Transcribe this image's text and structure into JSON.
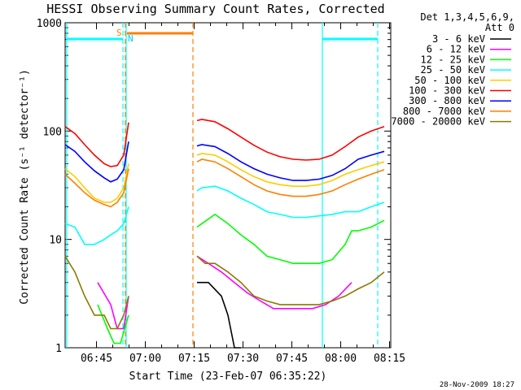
{
  "chart_data": {
    "type": "line",
    "title": "HESSI Observing Summary Count Rates, Corrected",
    "xlabel": "Start Time (23-Feb-07 06:35:22)",
    "ylabel": "Corrected Count Rate (s⁻¹ detector⁻¹)",
    "y_scale": "log",
    "ylim": [
      1,
      1000
    ],
    "xlim_minutes": [
      0,
      100
    ],
    "x_ticks": [
      {
        "t": 9.63,
        "label": "06:45"
      },
      {
        "t": 24.63,
        "label": "07:00"
      },
      {
        "t": 39.63,
        "label": "07:15"
      },
      {
        "t": 54.63,
        "label": "07:30"
      },
      {
        "t": 69.63,
        "label": "07:45"
      },
      {
        "t": 84.63,
        "label": "08:00"
      },
      {
        "t": 99.63,
        "label": "08:15"
      }
    ],
    "y_ticks": [
      {
        "v": 1,
        "label": "1"
      },
      {
        "v": 10,
        "label": "10"
      },
      {
        "v": 100,
        "label": "100"
      },
      {
        "v": 1000,
        "label": "1000"
      }
    ],
    "legend": {
      "placement": "right",
      "header": [
        "Det 1,3,4,5,6,9,",
        "Att 0"
      ]
    },
    "series": [
      {
        "name": "3 - 6 keV",
        "color": "#000000",
        "x": [
          40.5,
          44,
          48,
          50,
          52,
          54
        ],
        "y": [
          4,
          4,
          3,
          2,
          1,
          1
        ]
      },
      {
        "name": "6 - 12 keV",
        "color": "#ff00ff",
        "x": [
          10,
          14,
          16,
          18,
          19.5,
          40.5,
          44,
          48,
          52,
          56,
          60,
          64,
          68,
          72,
          76,
          80,
          84,
          88
        ],
        "y": [
          4,
          2.5,
          1.5,
          1.5,
          3,
          7,
          6,
          5,
          4,
          3.2,
          2.7,
          2.3,
          2.3,
          2.3,
          2.3,
          2.5,
          3,
          4
        ]
      },
      {
        "name": "12 - 25 keV",
        "color": "#00ff00",
        "x": [
          10,
          13,
          15,
          17,
          19.5,
          40.5,
          42,
          46,
          50,
          54,
          58,
          62,
          66,
          70,
          74,
          78,
          82,
          86,
          88,
          90,
          94,
          98
        ],
        "y": [
          2.5,
          1.5,
          1.1,
          1.1,
          2,
          13,
          14,
          17,
          14,
          11,
          9,
          7,
          6.5,
          6,
          6,
          6,
          6.5,
          9,
          12,
          12,
          13,
          15
        ]
      },
      {
        "name": "25 - 50 keV",
        "color": "#00ffff",
        "x": [
          0,
          3,
          6,
          9,
          12,
          14,
          16,
          18,
          19.5,
          40.5,
          42,
          46,
          50,
          54,
          58,
          62,
          66,
          70,
          74,
          78,
          82,
          86,
          90,
          94,
          98
        ],
        "y": [
          14,
          13,
          9,
          9,
          10,
          11,
          12,
          14,
          20,
          28,
          30,
          31,
          28,
          24,
          21,
          18,
          17,
          16,
          16,
          16.5,
          17,
          18,
          18,
          20,
          22
        ]
      },
      {
        "name": "50 - 100 keV",
        "color": "#ffcc00",
        "x": [
          0,
          3,
          6,
          9,
          12,
          14,
          16,
          18,
          19.5,
          40.5,
          42,
          46,
          50,
          54,
          58,
          62,
          66,
          70,
          74,
          78,
          82,
          86,
          90,
          94,
          98
        ],
        "y": [
          45,
          38,
          30,
          24,
          22,
          22,
          24,
          30,
          50,
          60,
          62,
          60,
          52,
          44,
          38,
          34,
          32,
          31,
          31,
          32,
          35,
          40,
          44,
          48,
          52
        ]
      },
      {
        "name": "100 - 300 keV",
        "color": "#ff0000",
        "x": [
          0,
          3,
          6,
          9,
          12,
          14,
          16,
          18,
          19.5,
          40.5,
          42,
          46,
          50,
          54,
          58,
          62,
          66,
          70,
          74,
          78,
          82,
          86,
          90,
          94,
          98
        ],
        "y": [
          110,
          95,
          75,
          60,
          50,
          47,
          48,
          60,
          120,
          125,
          128,
          122,
          105,
          88,
          74,
          64,
          58,
          55,
          54,
          55,
          60,
          72,
          88,
          100,
          110
        ]
      },
      {
        "name": "300 - 800 keV",
        "color": "#0000ff",
        "x": [
          0,
          3,
          6,
          9,
          12,
          14,
          16,
          18,
          19.5,
          40.5,
          42,
          46,
          50,
          54,
          58,
          62,
          66,
          70,
          74,
          78,
          82,
          86,
          90,
          94,
          98
        ],
        "y": [
          75,
          65,
          52,
          43,
          37,
          34,
          36,
          44,
          80,
          73,
          75,
          72,
          62,
          52,
          45,
          40,
          37,
          35,
          35,
          36,
          39,
          45,
          55,
          60,
          65
        ]
      },
      {
        "name": "800 - 7000 keV",
        "color": "#ff7f00",
        "x": [
          0,
          3,
          6,
          9,
          12,
          14,
          16,
          18,
          19.5,
          40.5,
          42,
          46,
          50,
          54,
          58,
          62,
          66,
          70,
          74,
          78,
          82,
          86,
          90,
          94,
          98
        ],
        "y": [
          40,
          33,
          27,
          23,
          21,
          20,
          22,
          27,
          45,
          52,
          55,
          52,
          45,
          38,
          32,
          28,
          26,
          25,
          25,
          26,
          28,
          32,
          36,
          40,
          44
        ]
      },
      {
        "name": "7000 - 20000 keV",
        "color": "#8b7a00",
        "x": [
          0,
          3,
          6,
          9,
          12,
          14,
          16,
          18,
          19.5,
          40.5,
          43,
          46,
          50,
          54,
          58,
          62,
          66,
          70,
          74,
          78,
          82,
          86,
          90,
          94,
          98
        ],
        "y": [
          7,
          5,
          3,
          2,
          2,
          1.5,
          1.5,
          2,
          3,
          7,
          6,
          6,
          5,
          4,
          3,
          2.7,
          2.5,
          2.5,
          2.5,
          2.5,
          2.7,
          3,
          3.5,
          4,
          5
        ]
      }
    ],
    "flags": [
      {
        "label": "S",
        "color": "#ff7f00"
      },
      {
        "label": "N",
        "color": "#00ccff"
      }
    ]
  },
  "timestamp": "28-Nov-2009 18:27"
}
